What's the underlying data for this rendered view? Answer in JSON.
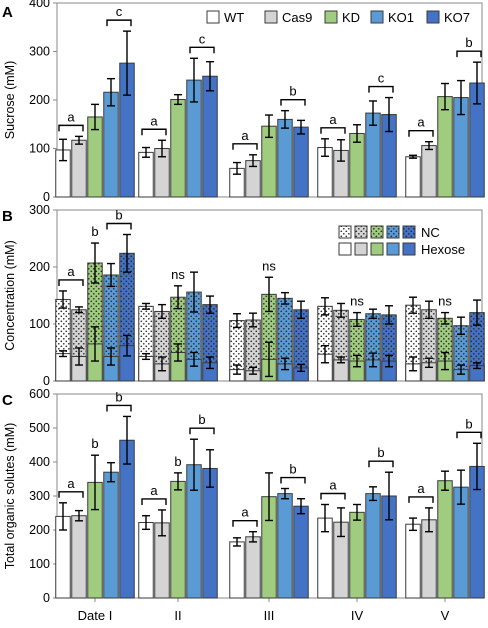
{
  "chart_data": [
    {
      "panel_label": "A",
      "type": "bar",
      "ylabel": "Sucrose (mM)",
      "ylim": [
        0,
        400
      ],
      "yticks": [
        "0",
        "100",
        "200",
        "300",
        "400"
      ],
      "categories": [
        "Date I",
        "II",
        "III",
        "IV",
        "V"
      ],
      "legend": [
        "WT",
        "Cas9",
        "KD",
        "KO1",
        "KO7"
      ],
      "series": [
        {
          "name": "WT",
          "values": [
            97,
            92,
            59,
            102,
            83
          ],
          "errors": [
            22,
            10,
            12,
            18,
            3
          ]
        },
        {
          "name": "Cas9",
          "values": [
            117,
            100,
            75,
            96,
            106
          ],
          "errors": [
            8,
            17,
            12,
            22,
            8
          ]
        },
        {
          "name": "KD",
          "values": [
            165,
            201,
            146,
            131,
            207
          ],
          "errors": [
            26,
            10,
            23,
            18,
            27
          ]
        },
        {
          "name": "KO1",
          "values": [
            216,
            241,
            160,
            173,
            205
          ],
          "errors": [
            28,
            45,
            18,
            25,
            35
          ]
        },
        {
          "name": "KO7",
          "values": [
            276,
            249,
            144,
            170,
            235
          ],
          "errors": [
            66,
            30,
            14,
            35,
            43
          ]
        }
      ],
      "significance": [
        {
          "category": 0,
          "brackets": [
            {
              "from": 0,
              "to": 1,
              "label": "a"
            },
            {
              "from": 3,
              "to": 4,
              "label": "c"
            }
          ]
        },
        {
          "category": 1,
          "brackets": [
            {
              "from": 0,
              "to": 1,
              "label": "a"
            },
            {
              "from": 3,
              "to": 4,
              "label": "c"
            }
          ]
        },
        {
          "category": 2,
          "brackets": [
            {
              "from": 0,
              "to": 1,
              "label": "a"
            },
            {
              "from": 3,
              "to": 4,
              "label": "b"
            }
          ]
        },
        {
          "category": 3,
          "brackets": [
            {
              "from": 0,
              "to": 1,
              "label": "a"
            },
            {
              "from": 3,
              "to": 4,
              "label": "c"
            }
          ]
        },
        {
          "category": 4,
          "brackets": [
            {
              "from": 0,
              "to": 1,
              "label": "a"
            },
            {
              "from": 3,
              "to": 4,
              "label": "b"
            }
          ]
        }
      ]
    },
    {
      "panel_label": "B",
      "type": "bar",
      "ylabel": "Concentration (mM)",
      "ylim": [
        0,
        300
      ],
      "yticks": [
        "0",
        "100",
        "200",
        "300"
      ],
      "categories": [
        "Date I",
        "II",
        "III",
        "IV",
        "V"
      ],
      "legend": [
        "NC",
        "Hexose"
      ],
      "series": [
        {
          "name": "WT",
          "nc": [
            143,
            131,
            106,
            131,
            133
          ],
          "nc_errors": [
            15,
            5,
            12,
            15,
            14
          ],
          "hexose": [
            48,
            43,
            20,
            47,
            30
          ],
          "hexose_errors": [
            5,
            5,
            8,
            15,
            12
          ]
        },
        {
          "name": "Cas9",
          "nc": [
            125,
            122,
            107,
            124,
            125
          ],
          "nc_errors": [
            5,
            12,
            12,
            12,
            15
          ],
          "hexose": [
            43,
            30,
            18,
            37,
            32
          ],
          "hexose_errors": [
            15,
            12,
            6,
            5,
            8
          ]
        },
        {
          "name": "KD",
          "nc": [
            207,
            147,
            152,
            108,
            110
          ],
          "nc_errors": [
            35,
            20,
            30,
            12,
            10
          ],
          "hexose": [
            65,
            50,
            38,
            35,
            35
          ],
          "hexose_errors": [
            30,
            15,
            30,
            10,
            15
          ]
        },
        {
          "name": "KO1",
          "nc": [
            186,
            156,
            145,
            118,
            97
          ],
          "nc_errors": [
            20,
            35,
            10,
            8,
            15
          ],
          "hexose": [
            43,
            38,
            30,
            37,
            20
          ],
          "hexose_errors": [
            15,
            12,
            10,
            12,
            8
          ]
        },
        {
          "name": "KO7",
          "nc": [
            224,
            134,
            125,
            116,
            120
          ],
          "nc_errors": [
            33,
            15,
            15,
            16,
            22
          ],
          "hexose": [
            62,
            32,
            23,
            35,
            27
          ],
          "hexose_errors": [
            18,
            10,
            6,
            10,
            5
          ]
        }
      ],
      "significance": [
        {
          "category": 0,
          "brackets": [
            {
              "from": 0,
              "to": 1,
              "label": "a"
            },
            {
              "from": 3,
              "to": 4,
              "label": "b"
            }
          ],
          "labels": [
            {
              "series": 2,
              "label": "b"
            }
          ]
        },
        {
          "category": 1,
          "labels": [
            {
              "series": 2,
              "label": "ns"
            }
          ]
        },
        {
          "category": 2,
          "labels": [
            {
              "series": 2,
              "label": "ns"
            }
          ]
        },
        {
          "category": 3,
          "labels": [
            {
              "series": 2,
              "label": "ns"
            }
          ]
        },
        {
          "category": 4,
          "labels": [
            {
              "series": 2,
              "label": "ns"
            }
          ]
        }
      ]
    },
    {
      "panel_label": "C",
      "type": "bar",
      "ylabel": "Total organic solutes (mM)",
      "ylim": [
        0,
        600
      ],
      "yticks": [
        "0",
        "100",
        "200",
        "300",
        "400",
        "500",
        "600"
      ],
      "categories": [
        "Date I",
        "II",
        "III",
        "IV",
        "V"
      ],
      "series": [
        {
          "name": "WT",
          "values": [
            240,
            222,
            165,
            235,
            217
          ],
          "errors": [
            40,
            20,
            12,
            40,
            18
          ]
        },
        {
          "name": "Cas9",
          "values": [
            242,
            221,
            180,
            223,
            230
          ],
          "errors": [
            15,
            38,
            15,
            42,
            35
          ]
        },
        {
          "name": "KD",
          "values": [
            340,
            343,
            298,
            252,
            345
          ],
          "errors": [
            80,
            25,
            70,
            23,
            28
          ]
        },
        {
          "name": "KO1",
          "values": [
            370,
            392,
            307,
            307,
            326
          ],
          "errors": [
            28,
            75,
            15,
            20,
            50
          ]
        },
        {
          "name": "KO7",
          "values": [
            464,
            381,
            270,
            300,
            387
          ],
          "errors": [
            70,
            55,
            22,
            70,
            68
          ]
        }
      ],
      "significance": [
        {
          "category": 0,
          "brackets": [
            {
              "from": 0,
              "to": 1,
              "label": "a"
            },
            {
              "from": 3,
              "to": 4,
              "label": "b"
            }
          ],
          "labels": [
            {
              "series": 2,
              "label": "b"
            }
          ]
        },
        {
          "category": 1,
          "brackets": [
            {
              "from": 0,
              "to": 1,
              "label": "a"
            },
            {
              "from": 3,
              "to": 4,
              "label": "b"
            }
          ],
          "labels": [
            {
              "series": 2,
              "label": "b"
            }
          ]
        },
        {
          "category": 2,
          "brackets": [
            {
              "from": 0,
              "to": 1,
              "label": "a"
            },
            {
              "from": 3,
              "to": 4,
              "label": "b"
            }
          ]
        },
        {
          "category": 3,
          "brackets": [
            {
              "from": 0,
              "to": 1,
              "label": "a"
            },
            {
              "from": 3,
              "to": 4,
              "label": "b"
            }
          ]
        },
        {
          "category": 4,
          "brackets": [
            {
              "from": 0,
              "to": 1,
              "label": "a"
            },
            {
              "from": 3,
              "to": 4,
              "label": "b"
            }
          ]
        }
      ]
    }
  ],
  "colors": {
    "WT": "#ffffff",
    "Cas9": "#d4d4d4",
    "KD": "#9fcc7e",
    "KO1": "#5b9bd5",
    "KO7": "#4472c4",
    "outline": "#3a3a3a",
    "axis": "#888888"
  }
}
